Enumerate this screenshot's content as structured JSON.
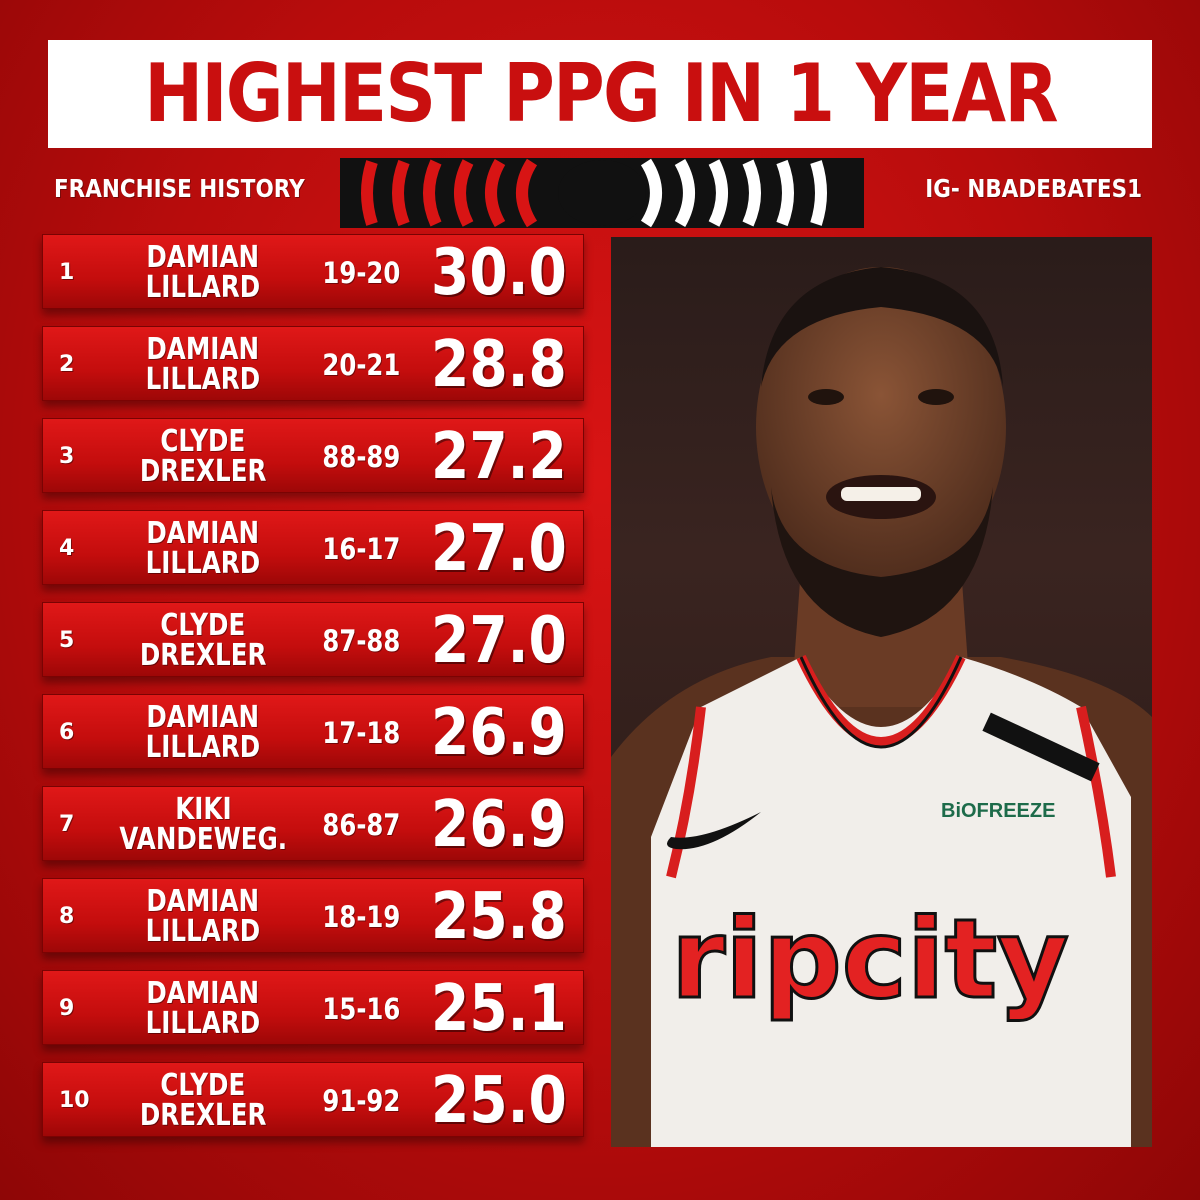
{
  "header": {
    "title": "HIGHEST PPG IN 1 YEAR",
    "subtitle": "FRANCHISE HISTORY",
    "handle": "IG- NBADEBATES1"
  },
  "rows": [
    {
      "rank": "1",
      "first": "DAMIAN",
      "last": "LILLARD",
      "season": "19-20",
      "ppg": "30.0"
    },
    {
      "rank": "2",
      "first": "DAMIAN",
      "last": "LILLARD",
      "season": "20-21",
      "ppg": "28.8"
    },
    {
      "rank": "3",
      "first": "CLYDE",
      "last": "DREXLER",
      "season": "88-89",
      "ppg": "27.2"
    },
    {
      "rank": "4",
      "first": "DAMIAN",
      "last": "LILLARD",
      "season": "16-17",
      "ppg": "27.0"
    },
    {
      "rank": "5",
      "first": "CLYDE",
      "last": "DREXLER",
      "season": "87-88",
      "ppg": "27.0"
    },
    {
      "rank": "6",
      "first": "DAMIAN",
      "last": "LILLARD",
      "season": "17-18",
      "ppg": "26.9"
    },
    {
      "rank": "7",
      "first": "KIKI",
      "last": "VANDEWEG.",
      "season": "86-87",
      "ppg": "26.9"
    },
    {
      "rank": "8",
      "first": "DAMIAN",
      "last": "LILLARD",
      "season": "18-19",
      "ppg": "25.8"
    },
    {
      "rank": "9",
      "first": "DAMIAN",
      "last": "LILLARD",
      "season": "15-16",
      "ppg": "25.1"
    },
    {
      "rank": "10",
      "first": "CLYDE",
      "last": "DREXLER",
      "season": "91-92",
      "ppg": "25.0"
    }
  ],
  "photo": {
    "jersey_wordmark": "ripcity",
    "sponsor_patch": "BiOFREEZE"
  },
  "colors": {
    "background": "#c90f0f",
    "title_text": "#c90f0f",
    "banner": "#ffffff",
    "text": "#ffffff"
  }
}
